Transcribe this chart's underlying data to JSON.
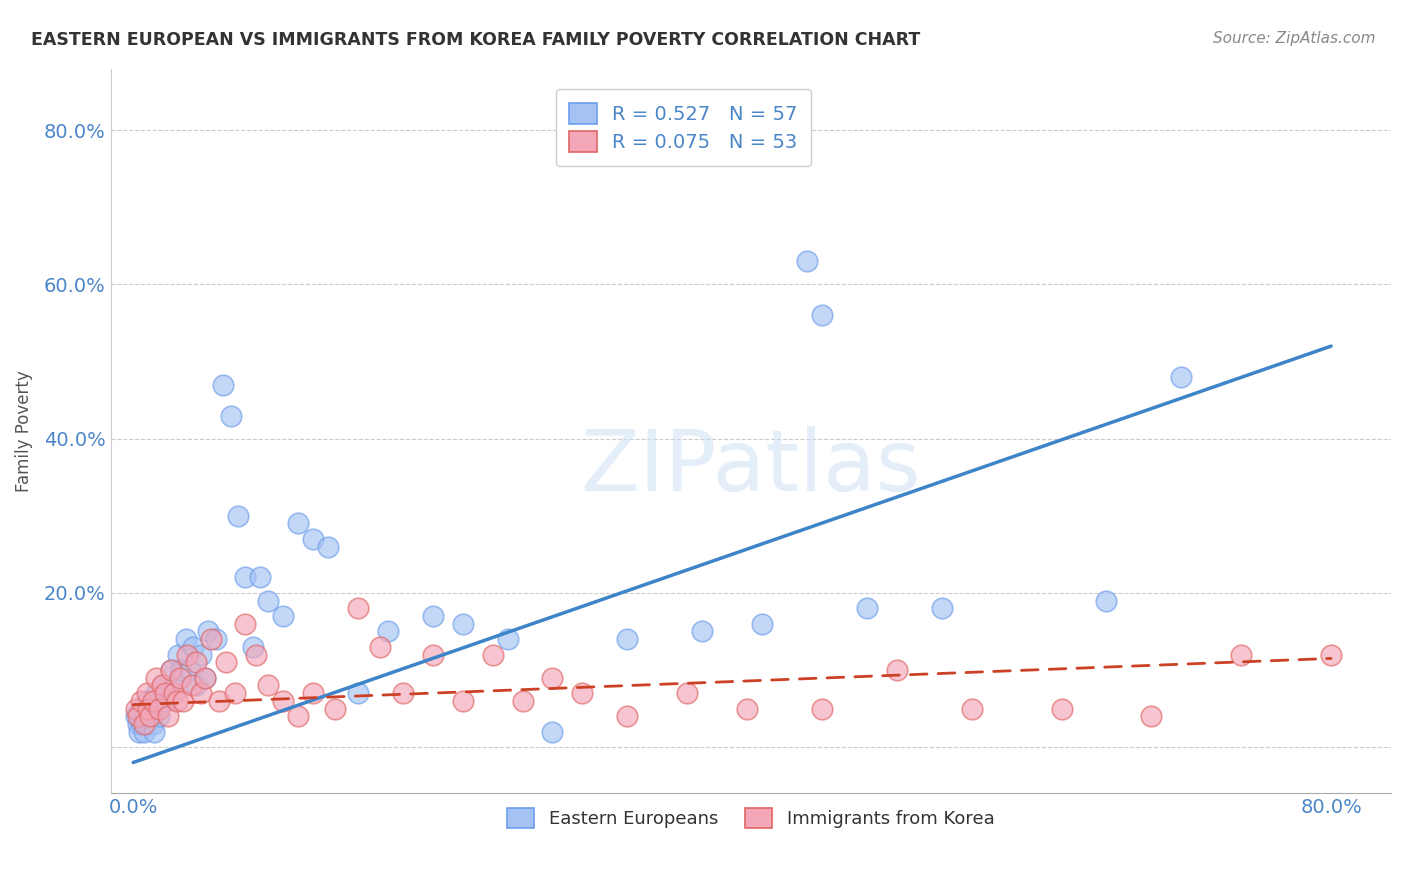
{
  "title": "EASTERN EUROPEAN VS IMMIGRANTS FROM KOREA FAMILY POVERTY CORRELATION CHART",
  "source": "Source: ZipAtlas.com",
  "ylabel": "Family Poverty",
  "xlim": [
    -0.015,
    0.84
  ],
  "ylim": [
    -0.06,
    0.88
  ],
  "xticks": [
    0.0,
    0.2,
    0.4,
    0.6,
    0.8
  ],
  "xtick_labels": [
    "0.0%",
    "",
    "",
    "",
    "80.0%"
  ],
  "yticks": [
    0.0,
    0.2,
    0.4,
    0.6,
    0.8
  ],
  "ytick_labels": [
    "",
    "20.0%",
    "40.0%",
    "60.0%",
    "80.0%"
  ],
  "blue_color": "#a4c2f4",
  "pink_color": "#f4a7b9",
  "blue_edge_color": "#6d9eeb",
  "pink_edge_color": "#e06666",
  "blue_line_color": "#3d85c8",
  "pink_line_color": "#cc4125",
  "R_blue": 0.527,
  "N_blue": 57,
  "R_pink": 0.075,
  "N_pink": 53,
  "legend1": "Eastern Europeans",
  "legend2": "Immigrants from Korea",
  "watermark": "ZIPatlas",
  "blue_x": [
    0.002,
    0.003,
    0.004,
    0.005,
    0.006,
    0.007,
    0.008,
    0.009,
    0.01,
    0.011,
    0.012,
    0.013,
    0.014,
    0.015,
    0.016,
    0.017,
    0.018,
    0.02,
    0.022,
    0.025,
    0.027,
    0.03,
    0.032,
    0.035,
    0.038,
    0.04,
    0.042,
    0.045,
    0.048,
    0.05,
    0.055,
    0.06,
    0.065,
    0.07,
    0.075,
    0.08,
    0.085,
    0.09,
    0.1,
    0.11,
    0.12,
    0.13,
    0.15,
    0.17,
    0.2,
    0.22,
    0.25,
    0.28,
    0.33,
    0.38,
    0.42,
    0.45,
    0.46,
    0.49,
    0.54,
    0.65,
    0.7
  ],
  "blue_y": [
    0.04,
    0.03,
    0.02,
    0.05,
    0.03,
    0.02,
    0.04,
    0.03,
    0.06,
    0.05,
    0.04,
    0.03,
    0.02,
    0.07,
    0.05,
    0.04,
    0.06,
    0.08,
    0.06,
    0.1,
    0.08,
    0.12,
    0.1,
    0.14,
    0.1,
    0.13,
    0.08,
    0.12,
    0.09,
    0.15,
    0.14,
    0.47,
    0.43,
    0.3,
    0.22,
    0.13,
    0.22,
    0.19,
    0.17,
    0.29,
    0.27,
    0.26,
    0.07,
    0.15,
    0.17,
    0.16,
    0.14,
    0.02,
    0.14,
    0.15,
    0.16,
    0.63,
    0.56,
    0.18,
    0.18,
    0.19,
    0.48
  ],
  "pink_x": [
    0.002,
    0.003,
    0.005,
    0.007,
    0.009,
    0.01,
    0.011,
    0.013,
    0.015,
    0.017,
    0.019,
    0.021,
    0.023,
    0.025,
    0.027,
    0.029,
    0.031,
    0.033,
    0.036,
    0.039,
    0.042,
    0.045,
    0.048,
    0.052,
    0.057,
    0.062,
    0.068,
    0.075,
    0.082,
    0.09,
    0.1,
    0.11,
    0.12,
    0.135,
    0.15,
    0.165,
    0.18,
    0.2,
    0.22,
    0.24,
    0.26,
    0.28,
    0.3,
    0.33,
    0.37,
    0.41,
    0.46,
    0.51,
    0.56,
    0.62,
    0.68,
    0.74,
    0.8
  ],
  "pink_y": [
    0.05,
    0.04,
    0.06,
    0.03,
    0.07,
    0.05,
    0.04,
    0.06,
    0.09,
    0.05,
    0.08,
    0.07,
    0.04,
    0.1,
    0.07,
    0.06,
    0.09,
    0.06,
    0.12,
    0.08,
    0.11,
    0.07,
    0.09,
    0.14,
    0.06,
    0.11,
    0.07,
    0.16,
    0.12,
    0.08,
    0.06,
    0.04,
    0.07,
    0.05,
    0.18,
    0.13,
    0.07,
    0.12,
    0.06,
    0.12,
    0.06,
    0.09,
    0.07,
    0.04,
    0.07,
    0.05,
    0.05,
    0.1,
    0.05,
    0.05,
    0.04,
    0.12,
    0.12
  ],
  "blue_line_x": [
    0.0,
    0.8
  ],
  "blue_line_y": [
    -0.02,
    0.52
  ],
  "pink_line_x": [
    0.0,
    0.8
  ],
  "pink_line_y": [
    0.055,
    0.115
  ]
}
